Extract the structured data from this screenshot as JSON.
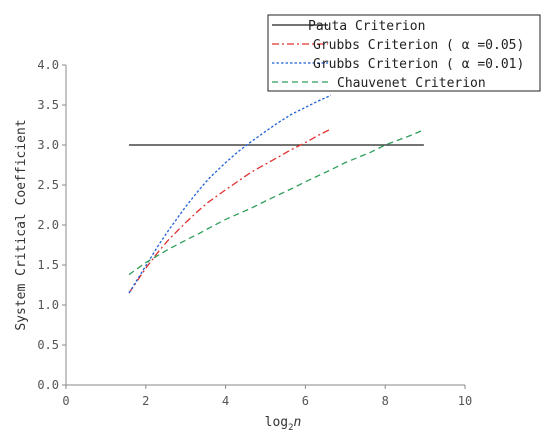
{
  "chart_data": {
    "type": "line",
    "title": "",
    "xlabel": "log2n",
    "ylabel": "System Critical Coefficient",
    "xlim": [
      0,
      10
    ],
    "ylim": [
      0,
      4
    ],
    "xticks": [
      "0",
      "2",
      "4",
      "6",
      "8",
      "10"
    ],
    "yticks": [
      "0.0",
      "0.5",
      "1.0",
      "1.5",
      "2.0",
      "2.5",
      "3.0",
      "3.5",
      "4.0"
    ],
    "legend_position": "top-right",
    "series": [
      {
        "name": "Pauta Criterion",
        "color": "#222222",
        "dash": "solid",
        "x": [
          1.58,
          8.97
        ],
        "y": [
          3.0,
          3.0
        ]
      },
      {
        "name": "Grubbs Criterion ( α =0.05)",
        "color": "#e03030",
        "dash": "dashdot",
        "x": [
          1.58,
          2.0,
          2.32,
          2.58,
          3.0,
          3.32,
          3.58,
          4.0,
          4.32,
          4.64,
          5.0,
          5.32,
          5.64,
          6.0,
          6.32,
          6.64
        ],
        "y": [
          1.15,
          1.46,
          1.67,
          1.82,
          2.03,
          2.18,
          2.29,
          2.44,
          2.55,
          2.66,
          2.76,
          2.85,
          2.94,
          3.03,
          3.12,
          3.2
        ]
      },
      {
        "name": "Grubbs Criterion ( α =0.01)",
        "color": "#1f5fd6",
        "dash": "dot",
        "x": [
          1.58,
          2.0,
          2.32,
          2.58,
          3.0,
          3.32,
          3.58,
          4.0,
          4.32,
          4.64,
          5.0,
          5.32,
          5.64,
          6.0,
          6.32,
          6.64
        ],
        "y": [
          1.15,
          1.49,
          1.75,
          1.94,
          2.23,
          2.43,
          2.58,
          2.78,
          2.92,
          3.04,
          3.17,
          3.28,
          3.38,
          3.47,
          3.55,
          3.62
        ]
      },
      {
        "name": "Chauvenet Criterion",
        "color": "#2e9e5b",
        "dash": "dash",
        "x": [
          1.58,
          2.0,
          2.58,
          3.0,
          3.32,
          3.58,
          4.0,
          4.64,
          5.0,
          5.64,
          6.0,
          6.64,
          7.0,
          7.64,
          8.0,
          8.64,
          8.97
        ],
        "y": [
          1.38,
          1.53,
          1.7,
          1.81,
          1.89,
          1.96,
          2.07,
          2.21,
          2.3,
          2.45,
          2.54,
          2.69,
          2.78,
          2.91,
          3.0,
          3.12,
          3.19
        ]
      }
    ]
  }
}
